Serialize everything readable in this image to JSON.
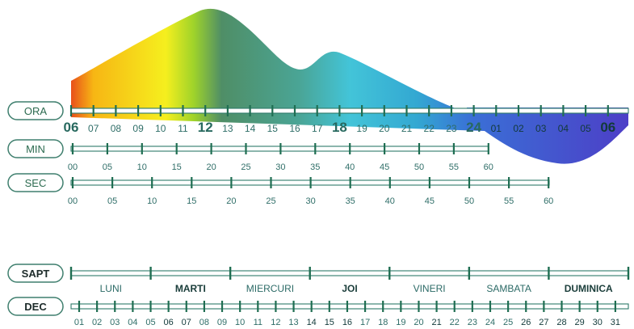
{
  "colors": {
    "bar_stroke": "#2f7a6a",
    "tick": "#1f6e52",
    "pill_stroke": "#3f7f6e",
    "label": "#2f6e68",
    "gradient": [
      "#e8501a",
      "#f7b614",
      "#f5ef1e",
      "#9fd32a",
      "#4f8e66",
      "#4aa596",
      "#43c4d8",
      "#33a8d2",
      "#3a6fd6",
      "#4d3fc7"
    ]
  },
  "rows": [
    {
      "key": "ora",
      "label": "ORA",
      "ticks": [
        "06",
        "07",
        "08",
        "09",
        "10",
        "11",
        "12",
        "13",
        "14",
        "15",
        "16",
        "17",
        "18",
        "19",
        "20",
        "21",
        "22",
        "23",
        "24",
        "01",
        "02",
        "03",
        "04",
        "05",
        "06"
      ],
      "big": [
        "06",
        "12",
        "18",
        "24"
      ]
    },
    {
      "key": "min",
      "label": "MIN",
      "ticks": [
        "00",
        "05",
        "10",
        "15",
        "20",
        "25",
        "30",
        "35",
        "40",
        "45",
        "50",
        "55",
        "60"
      ]
    },
    {
      "key": "sec",
      "label": "SEC",
      "ticks": [
        "00",
        "05",
        "10",
        "15",
        "20",
        "25",
        "30",
        "35",
        "40",
        "45",
        "50",
        "55",
        "60"
      ]
    },
    {
      "key": "sapt",
      "label": "SAPT",
      "days": [
        "LUNI",
        "MARTI",
        "MIERCURI",
        "JOI",
        "VINERI",
        "SAMBATA",
        "DUMINICA"
      ],
      "bold_days": [
        "MARTI",
        "JOI",
        "DUMINICA"
      ]
    },
    {
      "key": "dec",
      "label": "DEC",
      "ticks": [
        "01",
        "02",
        "03",
        "04",
        "05",
        "06",
        "07",
        "08",
        "09",
        "10",
        "11",
        "12",
        "13",
        "14",
        "15",
        "16",
        "17",
        "18",
        "19",
        "20",
        "21",
        "22",
        "23",
        "24",
        "25",
        "26",
        "27",
        "28",
        "29",
        "30",
        "31"
      ],
      "bold": [
        "06",
        "07",
        "14",
        "15",
        "16",
        "21",
        "26",
        "27",
        "28",
        "29",
        "30",
        "31"
      ]
    }
  ]
}
